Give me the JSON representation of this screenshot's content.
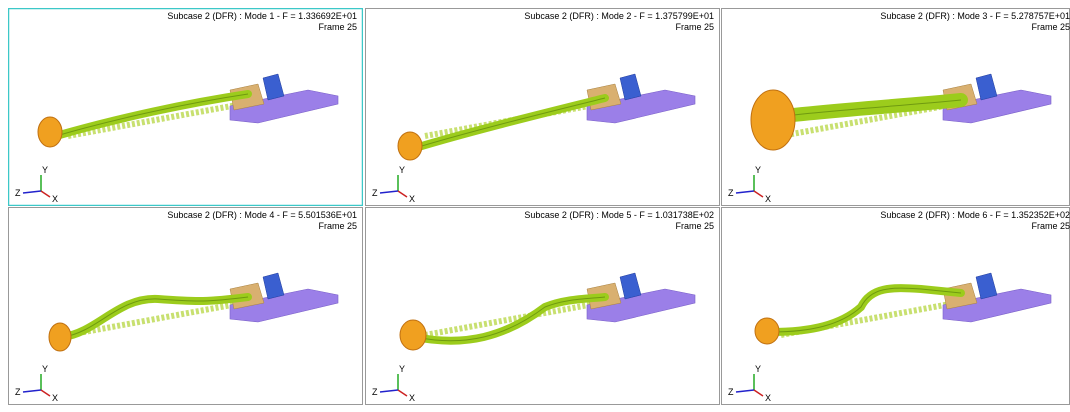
{
  "panels": [
    {
      "title": "Subcase 2 (DFR) : Mode 1 - F = 1.336692E+01",
      "frame": "Frame 25"
    },
    {
      "title": "Subcase 2 (DFR) : Mode 2 - F = 1.375799E+01",
      "frame": "Frame 25"
    },
    {
      "title": "Subcase 2 (DFR) : Mode 3 - F = 5.278757E+01",
      "frame": "Frame 25"
    },
    {
      "title": "Subcase 2 (DFR) : Mode 4 - F = 5.501536E+01",
      "frame": "Frame 25"
    },
    {
      "title": "Subcase 2 (DFR) : Mode 5 - F = 1.031738E+02",
      "frame": "Frame 25"
    },
    {
      "title": "Subcase 2 (DFR) : Mode 6 - F = 1.352352E+02",
      "frame": "Frame 25"
    }
  ],
  "triad": {
    "x": "X",
    "y": "Y",
    "z": "Z"
  }
}
